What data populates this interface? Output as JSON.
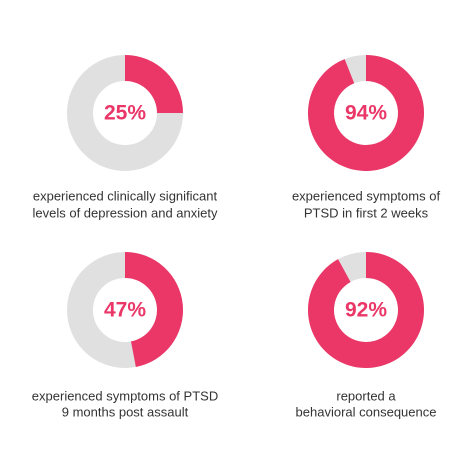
{
  "chart_data": [
    {
      "type": "donut",
      "values": [
        25
      ],
      "value_labels": [
        "25%"
      ],
      "caption": [
        "experienced clinically significant",
        "levels of depression and anxiety"
      ],
      "color": "#ea3768",
      "track_color": "#e0e0e0"
    },
    {
      "type": "donut",
      "values": [
        94
      ],
      "value_labels": [
        "94%"
      ],
      "caption": [
        "experienced symptoms of",
        "PTSD in first 2 weeks"
      ],
      "color": "#ea3768",
      "track_color": "#e0e0e0"
    },
    {
      "type": "donut",
      "values": [
        47
      ],
      "value_labels": [
        "47%"
      ],
      "caption": [
        "experienced symptoms of PTSD",
        "9 months post assault"
      ],
      "color": "#ea3768",
      "track_color": "#e0e0e0"
    },
    {
      "type": "donut",
      "values": [
        92
      ],
      "value_labels": [
        "92%"
      ],
      "caption": [
        "reported a",
        "behavioral consequence"
      ],
      "color": "#ea3768",
      "track_color": "#e0e0e0"
    }
  ]
}
